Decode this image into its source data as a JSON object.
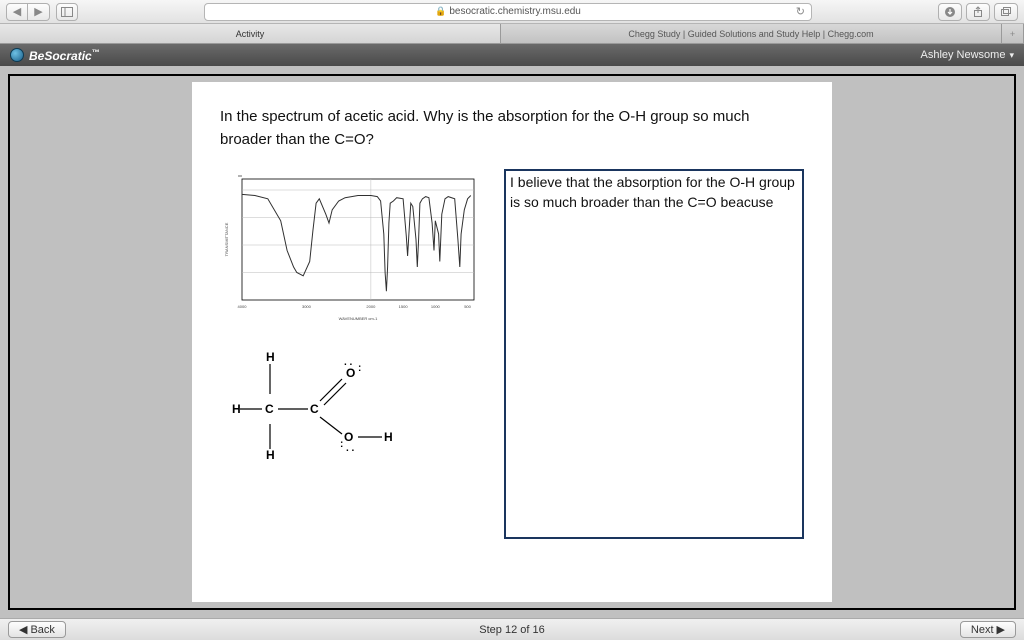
{
  "browser": {
    "url": "besocratic.chemistry.msu.edu",
    "tabs": [
      {
        "label": "Activity",
        "active": true
      },
      {
        "label": "Chegg Study | Guided Solutions and Study Help | Chegg.com",
        "active": false
      }
    ]
  },
  "app": {
    "brand": "BeSocratic",
    "tm": "™",
    "user": "Ashley Newsome"
  },
  "content": {
    "question": "In the spectrum of acetic acid. Why is the absorption for the O-H group so much broader than the C=O?",
    "answer": "I believe that the absorption for the O-H group is so much broader than the C=O beacuse",
    "ir_spectrum": {
      "type": "line",
      "xlim": [
        4000,
        400
      ],
      "ylim": [
        0,
        110
      ],
      "xlabel": "WAVENUMBER cm-1",
      "xticks": [
        4000,
        3000,
        2000,
        1500,
        1000,
        500
      ],
      "line_color": "#303030",
      "background_color": "#ffffff",
      "grid_color": "#bbbbbb",
      "points": [
        [
          4000,
          96
        ],
        [
          3800,
          95
        ],
        [
          3600,
          92
        ],
        [
          3400,
          72
        ],
        [
          3300,
          45
        ],
        [
          3200,
          30
        ],
        [
          3150,
          25
        ],
        [
          3050,
          22
        ],
        [
          2950,
          35
        ],
        [
          2900,
          63
        ],
        [
          2850,
          88
        ],
        [
          2800,
          92
        ],
        [
          2700,
          78
        ],
        [
          2650,
          70
        ],
        [
          2600,
          82
        ],
        [
          2500,
          90
        ],
        [
          2400,
          93
        ],
        [
          2300,
          94
        ],
        [
          2200,
          95
        ],
        [
          2100,
          95
        ],
        [
          2000,
          95
        ],
        [
          1900,
          94
        ],
        [
          1850,
          90
        ],
        [
          1800,
          60
        ],
        [
          1780,
          25
        ],
        [
          1760,
          8
        ],
        [
          1740,
          30
        ],
        [
          1720,
          70
        ],
        [
          1700,
          88
        ],
        [
          1650,
          90
        ],
        [
          1600,
          93
        ],
        [
          1500,
          92
        ],
        [
          1450,
          58
        ],
        [
          1430,
          40
        ],
        [
          1410,
          60
        ],
        [
          1380,
          88
        ],
        [
          1350,
          85
        ],
        [
          1300,
          55
        ],
        [
          1280,
          30
        ],
        [
          1260,
          55
        ],
        [
          1240,
          88
        ],
        [
          1200,
          92
        ],
        [
          1150,
          94
        ],
        [
          1100,
          93
        ],
        [
          1050,
          70
        ],
        [
          1020,
          45
        ],
        [
          1000,
          72
        ],
        [
          950,
          60
        ],
        [
          930,
          35
        ],
        [
          900,
          78
        ],
        [
          850,
          92
        ],
        [
          800,
          94
        ],
        [
          700,
          92
        ],
        [
          650,
          55
        ],
        [
          620,
          30
        ],
        [
          600,
          60
        ],
        [
          550,
          82
        ],
        [
          500,
          92
        ],
        [
          450,
          95
        ]
      ]
    },
    "structure": {
      "type": "molecule",
      "label_color": "#000000",
      "bond_color": "#000000",
      "atoms": {
        "H1": "H",
        "H2": "H",
        "H3": "H",
        "C1": "C",
        "C2": "C",
        "O1": "O",
        "O2": "O",
        "H4": "H"
      }
    }
  },
  "footer": {
    "back": "Back",
    "step": "Step 12 of 16",
    "next": "Next"
  },
  "colors": {
    "answer_border": "#1a355e",
    "page_bg": "#ffffff",
    "outer_bg": "#c0c0c0"
  }
}
